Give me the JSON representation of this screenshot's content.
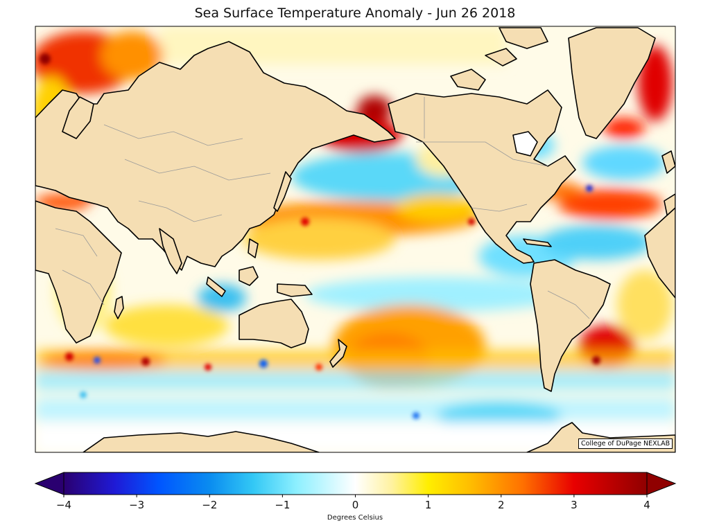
{
  "title": "Sea Surface Temperature Anomaly - Jun 26 2018",
  "credit": "College of DuPage NEXLAB",
  "colorbar": {
    "label": "Degrees Celsius",
    "min": -4,
    "max": 4,
    "ticks": [
      {
        "value": -4,
        "label": "−4"
      },
      {
        "value": -3,
        "label": "−3"
      },
      {
        "value": -2,
        "label": "−2"
      },
      {
        "value": -1,
        "label": "−1"
      },
      {
        "value": 0,
        "label": "0"
      },
      {
        "value": 1,
        "label": "1"
      },
      {
        "value": 2,
        "label": "2"
      },
      {
        "value": 3,
        "label": "3"
      },
      {
        "value": 4,
        "label": "4"
      }
    ],
    "extend": "both",
    "stops": [
      {
        "value": -4,
        "color": "#2a0070"
      },
      {
        "value": -3.3,
        "color": "#1f1ad6"
      },
      {
        "value": -2.7,
        "color": "#0055ff"
      },
      {
        "value": -2,
        "color": "#0a8cf0"
      },
      {
        "value": -1.4,
        "color": "#33c8f5"
      },
      {
        "value": -0.8,
        "color": "#8ef0ff"
      },
      {
        "value": 0,
        "color": "#ffffff"
      },
      {
        "value": 0.5,
        "color": "#fff2a0"
      },
      {
        "value": 1,
        "color": "#ffee00"
      },
      {
        "value": 1.6,
        "color": "#ffbb00"
      },
      {
        "value": 2.3,
        "color": "#ff7000"
      },
      {
        "value": 3,
        "color": "#e80000"
      },
      {
        "value": 4,
        "color": "#900000"
      }
    ]
  },
  "colors": {
    "land": "#f5deb3",
    "coast": "#000000",
    "border": "#999999"
  }
}
